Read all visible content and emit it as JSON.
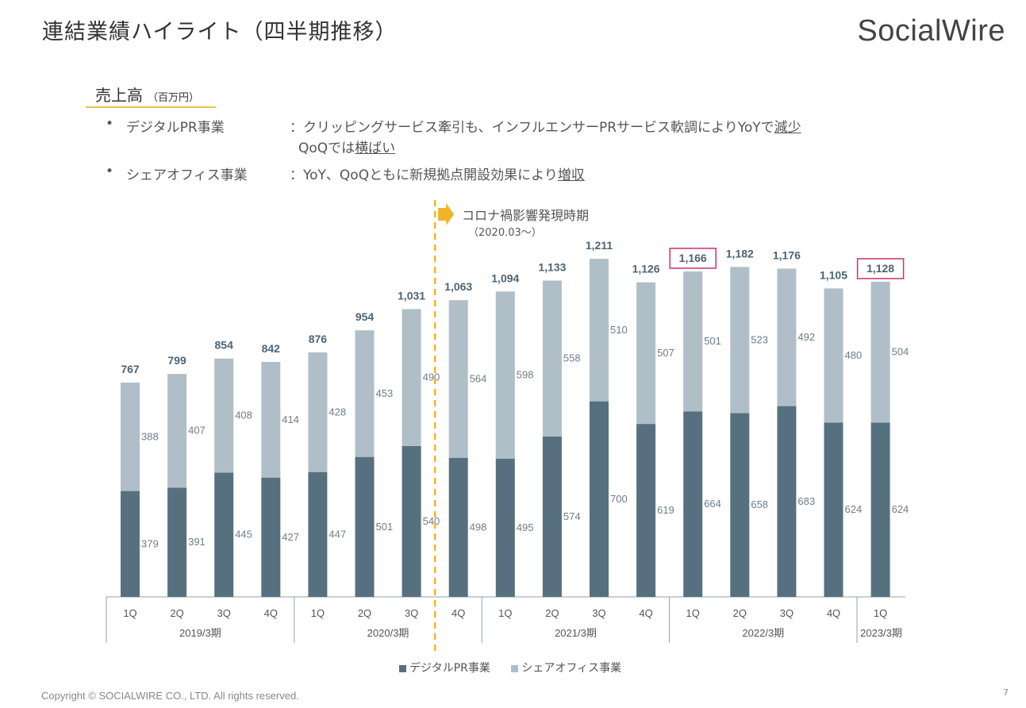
{
  "header": {
    "title": "連結業績ハイライト（四半期推移）",
    "logo_text": "SocialWire"
  },
  "section": {
    "title": "売上高",
    "unit": "（百万円）"
  },
  "bullets": [
    {
      "marker": "•",
      "label": "デジタルPR事業",
      "line1_prefix": "：クリッピングサービス牽引も、インフルエンサーPRサービス軟調によりYoYで",
      "line1_emph": "減少",
      "line2_prefix": "QoQでは",
      "line2_emph": "横ばい"
    },
    {
      "marker": "•",
      "label": "シェアオフィス事業",
      "line1_prefix": "：YoY、QoQともに新規拠点開設効果により",
      "line1_emph": "増収"
    }
  ],
  "annotation": {
    "text": "コロナ禍影響発現時期",
    "sub": "（2020.03～）"
  },
  "chart_data": {
    "type": "bar",
    "stacked": true,
    "categories": [
      "1Q",
      "2Q",
      "3Q",
      "4Q",
      "1Q",
      "2Q",
      "3Q",
      "4Q",
      "1Q",
      "2Q",
      "3Q",
      "4Q",
      "1Q",
      "2Q",
      "3Q",
      "4Q",
      "1Q"
    ],
    "groups": [
      {
        "label": "2019/3期",
        "count": 4
      },
      {
        "label": "2020/3期",
        "count": 4
      },
      {
        "label": "2021/3期",
        "count": 4
      },
      {
        "label": "2022/3期",
        "count": 4
      },
      {
        "label": "2023/3期",
        "count": 1
      }
    ],
    "series": [
      {
        "name": "デジタルPR事業",
        "color": "#56707f",
        "values": [
          379,
          391,
          445,
          427,
          447,
          501,
          540,
          498,
          495,
          574,
          700,
          619,
          664,
          658,
          683,
          624,
          624
        ]
      },
      {
        "name": "シェアオフィス事業",
        "color": "#b0bec8",
        "values": [
          388,
          407,
          408,
          414,
          428,
          453,
          490,
          564,
          598,
          558,
          510,
          507,
          501,
          523,
          492,
          480,
          504
        ]
      }
    ],
    "totals": [
      767,
      799,
      854,
      842,
      876,
      954,
      1031,
      1063,
      1094,
      1133,
      1211,
      1126,
      1166,
      1182,
      1176,
      1105,
      1128
    ],
    "highlighted_totals": [
      12,
      16
    ],
    "ylim": [
      0,
      1300
    ],
    "covid_marker_after_index": 6,
    "legend_position": "bottom"
  },
  "colors": {
    "digital": "#56707f",
    "office": "#b0bec8",
    "highlight": "#d0306a",
    "covid_line": "#f0b429",
    "total_label": "#4e6474"
  },
  "footer": {
    "copyright": "Copyright © SOCIALWIRE CO., LTD. All rights reserved.",
    "page": "7"
  }
}
